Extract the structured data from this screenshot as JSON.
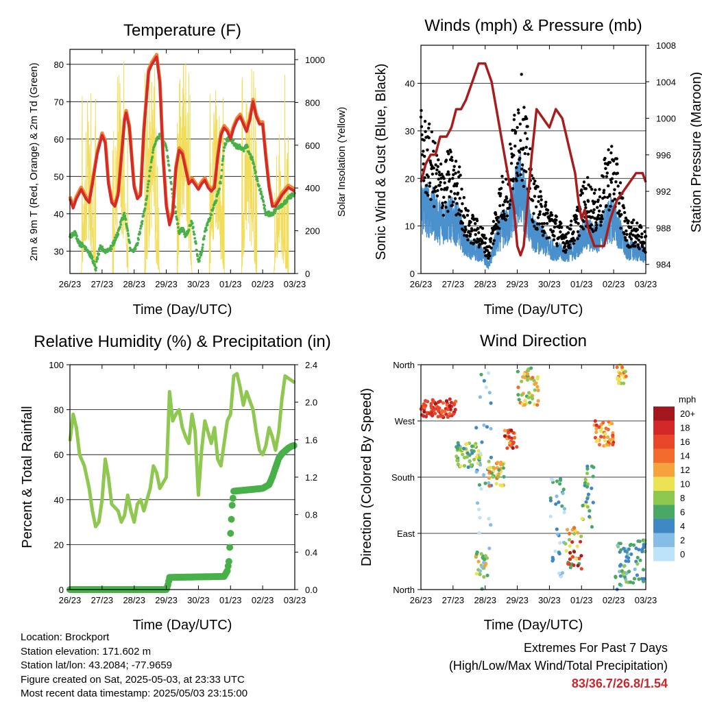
{
  "info": {
    "location": "Location: Brockport",
    "elevation": "Station elevation: 171.602 m",
    "latlon": "Station lat/lon: 43.2084; -77.9659",
    "created": "Figure created on Sat, 2025-05-03, at 23:33 UTC",
    "recent": "Most recent data timestamp: 2025/05/03 23:15:00"
  },
  "extremes": {
    "line1": "Extremes For Past 7 Days",
    "line2": "(High/Low/Max Wind/Total Precipitation)",
    "value": "83/36.7/26.8/1.54",
    "color": "#c8282d"
  },
  "colors": {
    "temp_9m": "#ee8833",
    "temp_2m": "#d42a2a",
    "dewpoint": "#48b048",
    "solar": "#f2dc5a",
    "gust": "#000000",
    "wind": "#4a90cc",
    "pressure": "#a81c1c",
    "rh": "#8ec850",
    "precip": "#48b048"
  },
  "chart_data": [
    {
      "id": "temperature",
      "type": "line",
      "title": "Temperature (F)",
      "xlabel": "Time (Day/UTC)",
      "ylabel": "2m & 9m T (Red, Orange) & 2m Td (Green)",
      "ylabel_right": "Solar Insolation (Yellow)",
      "xticks": [
        "26/23",
        "27/23",
        "28/23",
        "29/23",
        "30/23",
        "01/23",
        "02/23",
        "03/23"
      ],
      "xlim": [
        0,
        7
      ],
      "ylim": [
        24,
        84
      ],
      "yticks": [
        30,
        40,
        50,
        60,
        70,
        80
      ],
      "ylim_right": [
        0,
        1048
      ],
      "yticks_right": [
        0,
        200,
        400,
        600,
        800,
        1000
      ],
      "grid": "horizontal",
      "series": [
        {
          "key": "t2m",
          "x": [
            0,
            0.1,
            0.2,
            0.35,
            0.5,
            0.6,
            0.7,
            0.85,
            1.0,
            1.1,
            1.2,
            1.3,
            1.4,
            1.5,
            1.6,
            1.7,
            1.75,
            1.85,
            1.95,
            2.0,
            2.1,
            2.2,
            2.3,
            2.45,
            2.55,
            2.7,
            2.8,
            2.9,
            3.0,
            3.1,
            3.2,
            3.3,
            3.4,
            3.5,
            3.6,
            3.7,
            3.8,
            4.0,
            4.1,
            4.2,
            4.3,
            4.4,
            4.5,
            4.6,
            4.7,
            4.8,
            4.9,
            5.0,
            5.1,
            5.2,
            5.3,
            5.4,
            5.5,
            5.6,
            5.7,
            5.8,
            5.9,
            6.0,
            6.1,
            6.2,
            6.3,
            6.4,
            6.6,
            6.8,
            7.0
          ],
          "y": [
            44,
            41.5,
            44,
            46.5,
            44,
            43,
            48,
            56,
            61,
            59,
            48,
            43,
            42,
            45,
            55,
            65,
            67,
            63,
            52,
            47,
            44,
            45,
            62,
            78,
            80,
            82,
            75,
            55,
            42,
            37,
            40,
            52,
            57,
            56,
            52,
            48,
            49,
            46.5,
            48,
            49,
            47,
            46,
            47,
            55,
            61,
            63,
            62,
            60,
            63,
            65,
            66,
            64,
            62,
            65,
            70,
            66,
            64,
            64,
            55,
            47,
            42,
            42,
            45,
            47,
            46
          ]
        },
        {
          "key": "td2m",
          "x": [
            0,
            0.15,
            0.3,
            0.5,
            0.7,
            0.8,
            0.85,
            0.95,
            1.1,
            1.3,
            1.5,
            1.6,
            1.7,
            1.8,
            1.9,
            2.0,
            2.1,
            2.2,
            2.3,
            2.4,
            2.5,
            2.6,
            2.7,
            2.8,
            3.0,
            3.2,
            3.4,
            3.5,
            3.6,
            3.8,
            3.9,
            4.0,
            4.1,
            4.2,
            4.4,
            4.6,
            4.7,
            4.8,
            4.9,
            5.0,
            5.1,
            5.2,
            5.3,
            5.4,
            5.5,
            5.6,
            5.7,
            5.8,
            5.9,
            6.0,
            6.1,
            6.3,
            6.5,
            6.7,
            6.9,
            7.0
          ],
          "y": [
            34,
            35,
            32,
            31,
            28,
            25,
            28,
            31,
            30,
            31,
            35,
            38,
            40,
            35,
            30,
            30,
            32,
            36,
            40,
            45,
            52,
            57,
            60,
            61,
            58,
            45,
            35,
            36,
            34,
            38,
            33,
            27,
            30,
            35,
            40,
            45,
            49,
            58,
            60,
            60,
            59,
            58,
            58,
            57,
            58,
            56,
            54,
            50,
            47,
            44,
            40,
            40,
            42,
            43,
            45,
            45
          ]
        },
        {
          "key": "solar",
          "axis": "right",
          "x": [
            0,
            0.35,
            0.45,
            0.55,
            0.65,
            0.8,
            1.35,
            1.45,
            1.55,
            1.65,
            1.8,
            2.35,
            2.45,
            2.55,
            2.65,
            2.8,
            3.35,
            3.45,
            3.55,
            3.65,
            3.8,
            4.35,
            4.45,
            4.55,
            4.65,
            4.8,
            5.35,
            5.45,
            5.55,
            5.65,
            5.8,
            6.35,
            6.45,
            6.55,
            6.65,
            6.8,
            7.0
          ],
          "y": [
            0,
            0,
            400,
            940,
            400,
            0,
            0,
            600,
            1000,
            600,
            0,
            0,
            500,
            1000,
            300,
            0,
            0,
            800,
            1020,
            500,
            0,
            0,
            700,
            980,
            400,
            0,
            0,
            600,
            1000,
            500,
            0,
            0,
            300,
            500,
            200,
            0,
            0
          ]
        }
      ]
    },
    {
      "id": "winds",
      "type": "scatter",
      "title": "Winds (mph) & Pressure (mb)",
      "xlabel": "Time (Day/UTC)",
      "ylabel": "Sonic Wind & Gust (Blue, Black)",
      "ylabel_right": "Station Pressure (Maroon)",
      "xticks": [
        "26/23",
        "27/23",
        "28/23",
        "29/23",
        "30/23",
        "01/23",
        "02/23",
        "03/23"
      ],
      "xlim": [
        0,
        7
      ],
      "ylim": [
        0,
        48
      ],
      "yticks": [
        0,
        10,
        20,
        30,
        40
      ],
      "ylim_right": [
        983,
        1008
      ],
      "yticks_right": [
        984,
        988,
        992,
        996,
        1000,
        1004,
        1008
      ],
      "grid": "horizontal",
      "series": [
        {
          "key": "gust_env",
          "x": [
            0,
            0.3,
            0.6,
            0.9,
            1.2,
            1.4,
            1.6,
            1.9,
            2.1,
            2.3,
            2.5,
            2.7,
            2.9,
            3.1,
            3.3,
            3.5,
            3.8,
            4.1,
            4.5,
            4.8,
            5.0,
            5.2,
            5.4,
            5.6,
            5.8,
            6.0,
            6.2,
            6.4,
            6.6,
            6.8,
            7.0
          ],
          "y": [
            30,
            27,
            21,
            23,
            20,
            12,
            11,
            9,
            5,
            12,
            18,
            20,
            30,
            38,
            28,
            18,
            14,
            12,
            8,
            11,
            16,
            18,
            15,
            17,
            24,
            24,
            18,
            10,
            10,
            9,
            8
          ]
        },
        {
          "key": "wind_env",
          "x": [
            0,
            0.3,
            0.6,
            0.9,
            1.2,
            1.4,
            1.6,
            1.9,
            2.1,
            2.3,
            2.5,
            2.7,
            2.9,
            3.1,
            3.3,
            3.5,
            3.8,
            4.1,
            4.5,
            4.8,
            5.0,
            5.2,
            5.4,
            5.6,
            5.8,
            6.0,
            6.2,
            6.4,
            6.6,
            6.8,
            7.0
          ],
          "y": [
            17,
            16,
            13,
            14,
            12,
            7,
            6,
            5,
            2,
            7,
            11,
            12,
            18,
            22,
            16,
            10,
            8,
            6,
            5,
            6,
            9,
            10,
            9,
            10,
            13,
            14,
            10,
            6,
            6,
            5,
            5
          ]
        },
        {
          "key": "pressure",
          "axis": "right",
          "x": [
            0,
            0.15,
            0.3,
            0.45,
            0.6,
            0.8,
            0.95,
            1.1,
            1.25,
            1.4,
            1.6,
            1.8,
            2.0,
            2.2,
            2.35,
            2.5,
            2.7,
            2.9,
            3.0,
            3.1,
            3.2,
            3.3,
            3.45,
            3.6,
            3.8,
            4.0,
            4.2,
            4.4,
            4.6,
            4.8,
            4.9,
            5.0,
            5.1,
            5.2,
            5.4,
            5.55,
            5.7,
            5.9,
            6.1,
            6.3,
            6.5,
            6.7,
            6.9,
            7.0
          ],
          "y": [
            993,
            995,
            996,
            996,
            998,
            998,
            999,
            1001,
            1001,
            1002,
            1004,
            1006,
            1006,
            1004,
            1001,
            998,
            994,
            990,
            986,
            985,
            986,
            990,
            996,
            1001,
            1000,
            999,
            1001,
            1000,
            997,
            994,
            991,
            989,
            990,
            988,
            986,
            986,
            986,
            989,
            991,
            992,
            993,
            994,
            994,
            993
          ]
        }
      ]
    },
    {
      "id": "humidity",
      "type": "line",
      "title": "Relative Humidity (%) & Precipitation (in)",
      "xlabel": "Time (Day/UTC)",
      "ylabel": "Percent & Total Rainfall",
      "xticks": [
        "26/23",
        "27/23",
        "28/23",
        "29/23",
        "30/23",
        "01/23",
        "02/23",
        "03/23"
      ],
      "xlim": [
        0,
        7
      ],
      "ylim": [
        0,
        100
      ],
      "yticks": [
        0,
        20,
        40,
        60,
        80,
        100
      ],
      "ylim_right": [
        0,
        2.4
      ],
      "yticks_right": [
        "0.0",
        "0.4",
        "0.8",
        "1.2",
        "1.6",
        "2.0",
        "2.4"
      ],
      "grid": "horizontal",
      "series": [
        {
          "key": "rh",
          "x": [
            0,
            0.1,
            0.2,
            0.3,
            0.45,
            0.6,
            0.7,
            0.8,
            0.9,
            1.0,
            1.1,
            1.2,
            1.3,
            1.5,
            1.6,
            1.7,
            1.8,
            1.9,
            2.0,
            2.1,
            2.2,
            2.3,
            2.5,
            2.6,
            2.7,
            2.8,
            3.0,
            3.1,
            3.2,
            3.3,
            3.4,
            3.5,
            3.6,
            3.7,
            3.8,
            3.9,
            4.0,
            4.1,
            4.2,
            4.3,
            4.4,
            4.5,
            4.6,
            4.7,
            4.8,
            4.9,
            5.0,
            5.1,
            5.2,
            5.3,
            5.4,
            5.5,
            5.6,
            5.7,
            5.8,
            5.9,
            6.0,
            6.1,
            6.2,
            6.3,
            6.4,
            6.5,
            6.6,
            6.7,
            6.8,
            6.9,
            7.0
          ],
          "y": [
            66,
            78,
            72,
            60,
            55,
            45,
            35,
            28,
            30,
            40,
            58,
            50,
            38,
            35,
            30,
            33,
            42,
            35,
            30,
            38,
            40,
            35,
            45,
            55,
            52,
            45,
            50,
            88,
            75,
            78,
            80,
            72,
            68,
            65,
            78,
            70,
            42,
            62,
            75,
            70,
            65,
            72,
            58,
            55,
            65,
            75,
            78,
            95,
            96,
            90,
            82,
            88,
            84,
            80,
            70,
            62,
            60,
            64,
            72,
            68,
            62,
            70,
            85,
            95,
            94,
            93,
            92
          ]
        },
        {
          "key": "precip",
          "axis": "right",
          "x": [
            0,
            3.0,
            3.05,
            3.1,
            4.8,
            4.9,
            4.95,
            5.0,
            5.05,
            5.1,
            6.0,
            6.2,
            6.3,
            6.4,
            6.5,
            6.6,
            6.7,
            6.8,
            6.9,
            7.0
          ],
          "y": [
            0,
            0,
            0.05,
            0.13,
            0.14,
            0.2,
            0.3,
            0.6,
            0.9,
            1.05,
            1.08,
            1.12,
            1.2,
            1.3,
            1.4,
            1.45,
            1.48,
            1.51,
            1.53,
            1.54
          ]
        }
      ]
    },
    {
      "id": "winddir",
      "type": "scatter",
      "title": "Wind Direction",
      "xlabel": "Time (Day/UTC)",
      "ylabel": "Direction (Colored By Speed)",
      "xticks": [
        "26/23",
        "27/23",
        "28/23",
        "29/23",
        "30/23",
        "01/23",
        "02/23",
        "03/23"
      ],
      "xlim": [
        0,
        7
      ],
      "ylim": [
        0,
        360
      ],
      "yticks": [
        "North",
        "East",
        "South",
        "West",
        "North"
      ],
      "grid": "horizontal",
      "legend": {
        "title": "mph",
        "labels": [
          "20+",
          "18",
          "16",
          "14",
          "12",
          "10",
          "8",
          "6",
          "4",
          "2",
          "0"
        ],
        "colors": [
          "#a3171c",
          "#d42828",
          "#e8452a",
          "#f26b2c",
          "#f7a33d",
          "#ebe354",
          "#8ec850",
          "#4aa865",
          "#3f88c5",
          "#85bde6",
          "#bce3f7"
        ]
      },
      "clusters": [
        {
          "x": [
            0.0,
            1.1
          ],
          "y": [
            275,
            305
          ],
          "speed": [
            14,
            20
          ]
        },
        {
          "x": [
            1.1,
            1.9
          ],
          "y": [
            195,
            235
          ],
          "speed": [
            4,
            10
          ]
        },
        {
          "x": [
            1.7,
            2.1
          ],
          "y": [
            20,
            60
          ],
          "speed": [
            6,
            12
          ]
        },
        {
          "x": [
            1.7,
            2.2
          ],
          "y": [
            0,
            360
          ],
          "speed": [
            0,
            6
          ]
        },
        {
          "x": [
            2.1,
            2.6
          ],
          "y": [
            165,
            205
          ],
          "speed": [
            6,
            14
          ]
        },
        {
          "x": [
            2.6,
            3.0
          ],
          "y": [
            225,
            255
          ],
          "speed": [
            12,
            20
          ]
        },
        {
          "x": [
            3.0,
            3.7
          ],
          "y": [
            295,
            355
          ],
          "speed": [
            6,
            14
          ]
        },
        {
          "x": [
            4.0,
            4.5
          ],
          "y": [
            20,
            190
          ],
          "speed": [
            0,
            6
          ]
        },
        {
          "x": [
            4.5,
            5.0
          ],
          "y": [
            30,
            100
          ],
          "speed": [
            6,
            20
          ]
        },
        {
          "x": [
            5.0,
            5.4
          ],
          "y": [
            100,
            200
          ],
          "speed": [
            4,
            10
          ]
        },
        {
          "x": [
            5.4,
            6.0
          ],
          "y": [
            230,
            270
          ],
          "speed": [
            10,
            18
          ]
        },
        {
          "x": [
            6.1,
            6.4
          ],
          "y": [
            330,
            360
          ],
          "speed": [
            6,
            14
          ]
        },
        {
          "x": [
            6.0,
            7.0
          ],
          "y": [
            0,
            80
          ],
          "speed": [
            2,
            8
          ]
        }
      ]
    }
  ]
}
